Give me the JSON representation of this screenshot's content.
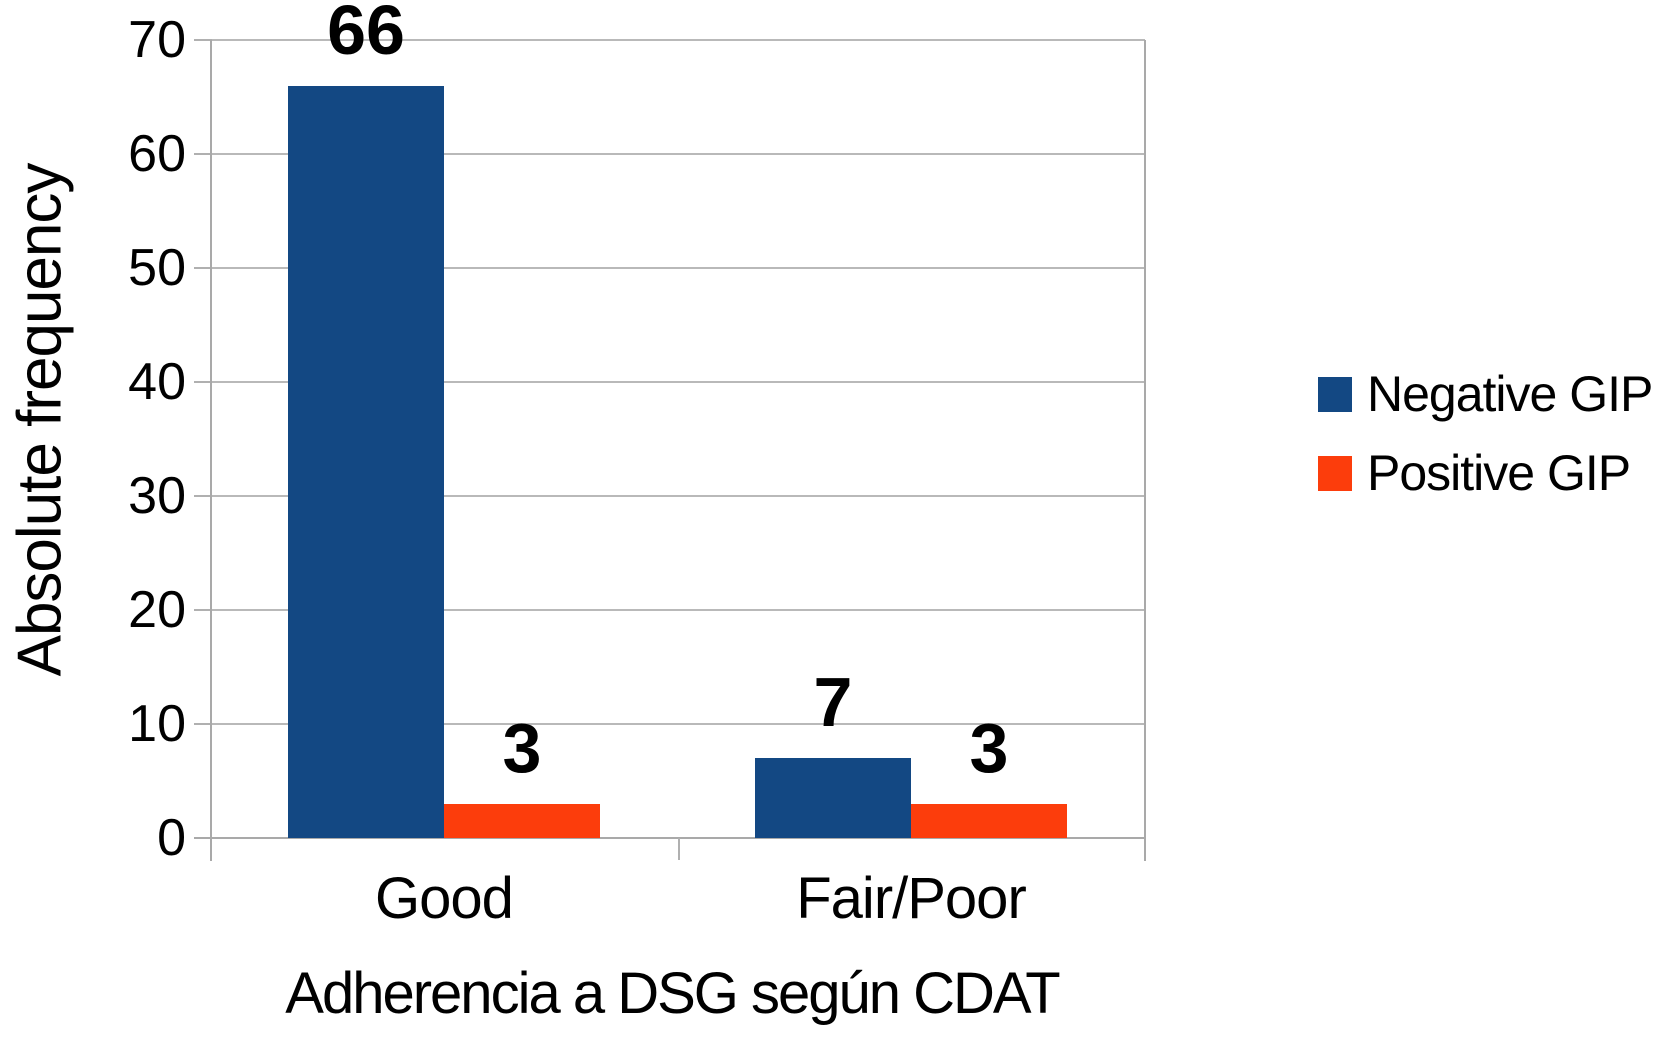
{
  "chart_data": {
    "type": "bar",
    "categories": [
      "Good",
      "Fair/Poor"
    ],
    "series": [
      {
        "name": "Negative GIP",
        "color": "#134883",
        "values": [
          66,
          7
        ]
      },
      {
        "name": "Positive GIP",
        "color": "#FC3D0C",
        "values": [
          3,
          3
        ]
      }
    ],
    "data_labels": [
      [
        "66",
        "3"
      ],
      [
        "7",
        "3"
      ]
    ],
    "title": "",
    "xlabel": "Adherencia a DSG según CDAT",
    "ylabel": "Absolute frequency",
    "ylim": [
      0,
      70
    ],
    "yticks": [
      0,
      10,
      20,
      30,
      40,
      50,
      60,
      70
    ],
    "grid": true,
    "legend_position": "right",
    "colors": {
      "gridline": "#b9b9b9",
      "axis": "#a9a9a9",
      "text": "#000000",
      "background": "#ffffff"
    }
  }
}
